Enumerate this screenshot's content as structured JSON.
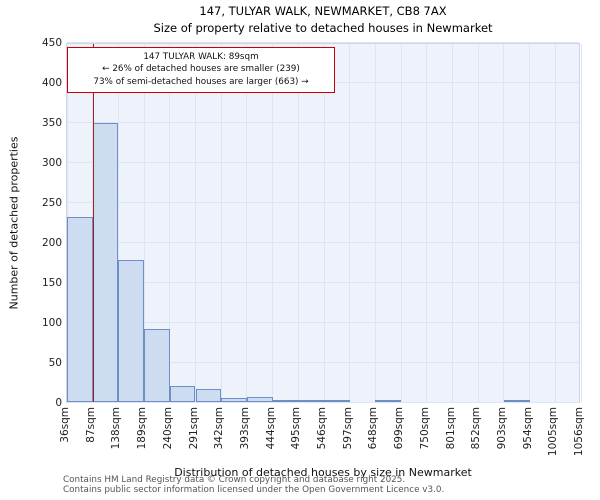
{
  "title": "147, TULYAR WALK, NEWMARKET, CB8 7AX",
  "subtitle": "Size of property relative to detached houses in Newmarket",
  "annotation": {
    "line1": "147 TULYAR WALK: 89sqm",
    "line2": "← 26% of detached houses are smaller (239)",
    "line3": "73% of semi-detached houses are larger (663) →"
  },
  "footer": {
    "line1": "Contains HM Land Registry data © Crown copyright and database right 2025.",
    "line2": "Contains public sector information licensed under the Open Government Licence v3.0."
  },
  "chart_data": {
    "type": "bar",
    "title": "147, TULYAR WALK, NEWMARKET, CB8 7AX",
    "subtitle": "Size of property relative to detached houses in Newmarket",
    "xlabel": "Distribution of detached houses by size in Newmarket",
    "ylabel": "Number of detached properties",
    "bin_edges_sqm": [
      36,
      87,
      138,
      189,
      240,
      291,
      342,
      393,
      444,
      495,
      546,
      597,
      648,
      699,
      750,
      801,
      852,
      903,
      954,
      1005,
      1056
    ],
    "x_tick_labels": [
      "36sqm",
      "87sqm",
      "138sqm",
      "189sqm",
      "240sqm",
      "291sqm",
      "342sqm",
      "393sqm",
      "444sqm",
      "495sqm",
      "546sqm",
      "597sqm",
      "648sqm",
      "699sqm",
      "750sqm",
      "801sqm",
      "852sqm",
      "903sqm",
      "954sqm",
      "1005sqm",
      "1056sqm"
    ],
    "values": [
      231,
      349,
      177,
      91,
      20,
      16,
      5,
      6,
      2,
      3,
      3,
      0,
      1,
      0,
      0,
      0,
      0,
      1,
      0,
      0
    ],
    "ylim": [
      0,
      450
    ],
    "y_ticks": [
      0,
      50,
      100,
      150,
      200,
      250,
      300,
      350,
      400,
      450
    ],
    "grid": true,
    "legend": false,
    "marker_sqm": 89,
    "colors": {
      "bar_fill": "#cddcf0",
      "bar_edge": "#6d8ec6",
      "marker_line": "#a81e1e",
      "annotation_border": "#cc0000",
      "plot_bg": "#eef2fa",
      "gridline": "#dde4f3"
    }
  }
}
